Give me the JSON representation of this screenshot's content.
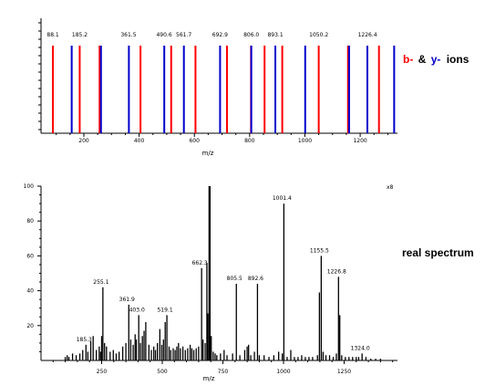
{
  "chart_data": [
    {
      "type": "bar",
      "name": "theoretical-ions",
      "xlabel": "m/z",
      "xlim": [
        45,
        1335
      ],
      "xticks": [
        200,
        400,
        600,
        800,
        1000,
        1200
      ],
      "legend": {
        "b_label": "b-",
        "amp_label": "&",
        "y_label": "y-",
        "ions_label": "ions"
      },
      "colors": {
        "b": "#ff0000",
        "y": "#0000cc"
      },
      "peak_labels": [
        {
          "x": 88.1,
          "text": "88.1"
        },
        {
          "x": 185.2,
          "text": "185.2"
        },
        {
          "x": 361.5,
          "text": "361.5"
        },
        {
          "x": 490.6,
          "text": "490.6"
        },
        {
          "x": 561.7,
          "text": "561.7"
        },
        {
          "x": 692.9,
          "text": "692.9"
        },
        {
          "x": 806.0,
          "text": "806.0"
        },
        {
          "x": 893.1,
          "text": "893.1"
        },
        {
          "x": 1050.2,
          "text": "1050.2"
        },
        {
          "x": 1226.4,
          "text": "1226.4"
        }
      ],
      "b_ions": [
        88,
        185,
        257,
        405,
        516,
        604,
        718,
        805,
        854,
        918,
        1050,
        1156,
        1268
      ],
      "y_ions": [
        156,
        262,
        363,
        491,
        562,
        693,
        806,
        893,
        1001,
        1160,
        1226,
        1323
      ]
    },
    {
      "type": "bar",
      "name": "real-spectrum",
      "xlabel": "m/z",
      "xlim": [
        0,
        1470
      ],
      "xticks": [
        250,
        500,
        750,
        1000,
        1250
      ],
      "ylim": [
        0,
        100
      ],
      "yticks": [
        20,
        40,
        60,
        80,
        100
      ],
      "scale_label": "x8",
      "side_label": "real spectrum",
      "peaks": [
        {
          "x": 100,
          "y": 2
        },
        {
          "x": 108,
          "y": 3
        },
        {
          "x": 115,
          "y": 2
        },
        {
          "x": 130,
          "y": 4
        },
        {
          "x": 145,
          "y": 3
        },
        {
          "x": 160,
          "y": 4
        },
        {
          "x": 172,
          "y": 6
        },
        {
          "x": 185.3,
          "y": 9
        },
        {
          "x": 193,
          "y": 5
        },
        {
          "x": 205,
          "y": 11
        },
        {
          "x": 215,
          "y": 14
        },
        {
          "x": 228,
          "y": 6
        },
        {
          "x": 240,
          "y": 8
        },
        {
          "x": 246,
          "y": 5
        },
        {
          "x": 250,
          "y": 14
        },
        {
          "x": 255.1,
          "y": 42
        },
        {
          "x": 262,
          "y": 10
        },
        {
          "x": 270,
          "y": 8
        },
        {
          "x": 285,
          "y": 5
        },
        {
          "x": 298,
          "y": 6
        },
        {
          "x": 310,
          "y": 4
        },
        {
          "x": 322,
          "y": 5
        },
        {
          "x": 337,
          "y": 8
        },
        {
          "x": 350,
          "y": 10
        },
        {
          "x": 361.9,
          "y": 32
        },
        {
          "x": 370,
          "y": 12
        },
        {
          "x": 380,
          "y": 9
        },
        {
          "x": 388,
          "y": 15
        },
        {
          "x": 393,
          "y": 12
        },
        {
          "x": 403.0,
          "y": 26
        },
        {
          "x": 410,
          "y": 10
        },
        {
          "x": 418,
          "y": 14
        },
        {
          "x": 425,
          "y": 17
        },
        {
          "x": 432,
          "y": 22
        },
        {
          "x": 445,
          "y": 9
        },
        {
          "x": 455,
          "y": 6
        },
        {
          "x": 465,
          "y": 8
        },
        {
          "x": 472,
          "y": 6
        },
        {
          "x": 480,
          "y": 10
        },
        {
          "x": 490,
          "y": 18
        },
        {
          "x": 498,
          "y": 9
        },
        {
          "x": 505,
          "y": 12
        },
        {
          "x": 512,
          "y": 22
        },
        {
          "x": 519.1,
          "y": 26
        },
        {
          "x": 528,
          "y": 8
        },
        {
          "x": 535,
          "y": 6
        },
        {
          "x": 545,
          "y": 7
        },
        {
          "x": 553,
          "y": 6
        },
        {
          "x": 560,
          "y": 8
        },
        {
          "x": 567,
          "y": 10
        },
        {
          "x": 575,
          "y": 7
        },
        {
          "x": 585,
          "y": 8
        },
        {
          "x": 595,
          "y": 6
        },
        {
          "x": 605,
          "y": 7
        },
        {
          "x": 615,
          "y": 9
        },
        {
          "x": 622,
          "y": 7
        },
        {
          "x": 630,
          "y": 6
        },
        {
          "x": 640,
          "y": 7
        },
        {
          "x": 650,
          "y": 8
        },
        {
          "x": 662.3,
          "y": 53
        },
        {
          "x": 668,
          "y": 12
        },
        {
          "x": 677,
          "y": 10
        },
        {
          "x": 684,
          "y": 56
        },
        {
          "x": 688,
          "y": 27
        },
        {
          "x": 693,
          "y": 100
        },
        {
          "x": 697,
          "y": 100
        },
        {
          "x": 702,
          "y": 14
        },
        {
          "x": 710,
          "y": 5
        },
        {
          "x": 718,
          "y": 4
        },
        {
          "x": 725,
          "y": 3
        },
        {
          "x": 740,
          "y": 4
        },
        {
          "x": 755,
          "y": 6
        },
        {
          "x": 767,
          "y": 3
        },
        {
          "x": 790,
          "y": 4
        },
        {
          "x": 805.5,
          "y": 44
        },
        {
          "x": 820,
          "y": 3
        },
        {
          "x": 840,
          "y": 6
        },
        {
          "x": 850,
          "y": 8
        },
        {
          "x": 856,
          "y": 9
        },
        {
          "x": 865,
          "y": 3
        },
        {
          "x": 880,
          "y": 5
        },
        {
          "x": 892.6,
          "y": 44
        },
        {
          "x": 900,
          "y": 3
        },
        {
          "x": 920,
          "y": 3
        },
        {
          "x": 940,
          "y": 2
        },
        {
          "x": 960,
          "y": 3
        },
        {
          "x": 980,
          "y": 5
        },
        {
          "x": 995,
          "y": 4
        },
        {
          "x": 1001.4,
          "y": 90
        },
        {
          "x": 1015,
          "y": 2
        },
        {
          "x": 1030,
          "y": 6
        },
        {
          "x": 1045,
          "y": 2
        },
        {
          "x": 1060,
          "y": 2
        },
        {
          "x": 1075,
          "y": 3
        },
        {
          "x": 1090,
          "y": 2
        },
        {
          "x": 1105,
          "y": 2
        },
        {
          "x": 1120,
          "y": 2
        },
        {
          "x": 1140,
          "y": 3
        },
        {
          "x": 1148,
          "y": 39
        },
        {
          "x": 1155.5,
          "y": 60
        },
        {
          "x": 1163,
          "y": 5
        },
        {
          "x": 1175,
          "y": 3
        },
        {
          "x": 1190,
          "y": 3
        },
        {
          "x": 1205,
          "y": 2
        },
        {
          "x": 1218,
          "y": 4
        },
        {
          "x": 1226.8,
          "y": 48
        },
        {
          "x": 1232,
          "y": 26
        },
        {
          "x": 1240,
          "y": 3
        },
        {
          "x": 1255,
          "y": 2
        },
        {
          "x": 1270,
          "y": 2
        },
        {
          "x": 1285,
          "y": 2
        },
        {
          "x": 1300,
          "y": 2
        },
        {
          "x": 1310,
          "y": 2
        },
        {
          "x": 1324.0,
          "y": 4
        },
        {
          "x": 1340,
          "y": 2
        },
        {
          "x": 1360,
          "y": 1
        },
        {
          "x": 1380,
          "y": 1
        },
        {
          "x": 1400,
          "y": 1
        }
      ],
      "peak_labels": [
        {
          "x": 185.3,
          "y": 9,
          "text": "185.3"
        },
        {
          "x": 255.1,
          "y": 42,
          "text": "255.1"
        },
        {
          "x": 361.9,
          "y": 32,
          "text": "361.9"
        },
        {
          "x": 403.0,
          "y": 26,
          "text": "403.0"
        },
        {
          "x": 519.1,
          "y": 26,
          "text": "519.1"
        },
        {
          "x": 662.3,
          "y": 53,
          "text": "662.3"
        },
        {
          "x": 805.5,
          "y": 44,
          "text": "805.5"
        },
        {
          "x": 892.6,
          "y": 44,
          "text": "892.6"
        },
        {
          "x": 1001.4,
          "y": 90,
          "text": "1001.4"
        },
        {
          "x": 1155.5,
          "y": 60,
          "text": "1155.5"
        },
        {
          "x": 1226.8,
          "y": 48,
          "text": "1226.8"
        },
        {
          "x": 1324.0,
          "y": 4,
          "text": "1324.0"
        }
      ]
    }
  ]
}
